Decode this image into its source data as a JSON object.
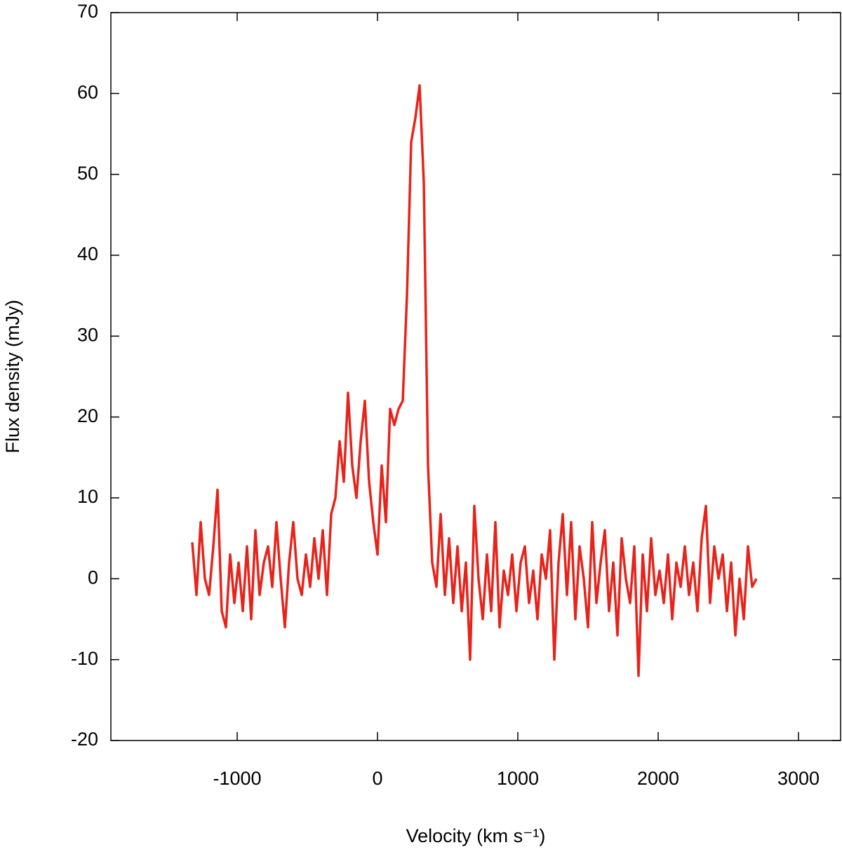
{
  "chart_data": {
    "type": "line",
    "xlabel": "Velocity (km s⁻¹)",
    "ylabel": "Flux density (mJy)",
    "xlim": [
      -1900,
      3300
    ],
    "xticks": [
      -1000,
      0,
      1000,
      2000,
      3000
    ],
    "ylim": [
      -20,
      70
    ],
    "yticks": [
      -20,
      -10,
      0,
      10,
      20,
      30,
      40,
      50,
      60,
      70
    ],
    "grid": false,
    "series": [
      {
        "color": "#e8231a",
        "x": [
          -1320,
          -1290,
          -1260,
          -1230,
          -1200,
          -1170,
          -1140,
          -1110,
          -1080,
          -1050,
          -1020,
          -990,
          -960,
          -930,
          -900,
          -870,
          -840,
          -810,
          -780,
          -750,
          -720,
          -690,
          -660,
          -630,
          -600,
          -570,
          -540,
          -510,
          -480,
          -450,
          -420,
          -390,
          -360,
          -330,
          -300,
          -270,
          -240,
          -210,
          -180,
          -150,
          -120,
          -90,
          -60,
          -30,
          0,
          30,
          60,
          90,
          120,
          150,
          180,
          210,
          240,
          270,
          300,
          330,
          360,
          390,
          420,
          450,
          480,
          510,
          540,
          570,
          600,
          630,
          660,
          690,
          720,
          750,
          780,
          810,
          840,
          870,
          900,
          930,
          960,
          990,
          1020,
          1050,
          1080,
          1110,
          1140,
          1170,
          1200,
          1230,
          1260,
          1290,
          1320,
          1350,
          1380,
          1410,
          1440,
          1470,
          1500,
          1530,
          1560,
          1590,
          1620,
          1650,
          1680,
          1710,
          1740,
          1770,
          1800,
          1830,
          1860,
          1890,
          1920,
          1950,
          1980,
          2010,
          2040,
          2070,
          2100,
          2130,
          2160,
          2190,
          2220,
          2250,
          2280,
          2310,
          2340,
          2370,
          2400,
          2430,
          2460,
          2490,
          2520,
          2550,
          2580,
          2610,
          2640,
          2670,
          2700
        ],
        "values": [
          4.5,
          -2,
          7,
          0,
          -2,
          4,
          11,
          -4,
          -6,
          3,
          -3,
          2,
          -4,
          4,
          -5,
          6,
          -2,
          2,
          4,
          -1,
          7,
          0,
          -6,
          2,
          7,
          0,
          -2,
          3,
          -1,
          5,
          0,
          6,
          -2,
          8,
          10,
          17,
          12,
          23,
          14,
          10,
          17,
          22,
          12,
          7,
          3,
          14,
          7,
          21,
          19,
          21,
          22,
          35,
          54,
          57,
          61,
          49,
          14,
          2,
          -1,
          8,
          -2,
          5,
          -3,
          4,
          -4,
          2,
          -10,
          9,
          0,
          -5,
          3,
          -4,
          7,
          -6,
          1,
          -2,
          3,
          -4,
          2,
          4,
          -3,
          1,
          -5,
          3,
          0,
          6,
          -10,
          2,
          8,
          -2,
          7,
          -5,
          4,
          0,
          -6,
          7,
          -3,
          2,
          6,
          -4,
          2,
          -7,
          5,
          0,
          -3,
          4,
          -12,
          3,
          -4,
          5,
          -2,
          1,
          -3,
          3,
          -5,
          2,
          -1,
          4,
          -2,
          2,
          -4,
          5,
          9,
          -3,
          4,
          0,
          3,
          -4,
          2,
          -7,
          0,
          -5,
          4,
          -1,
          0
        ]
      }
    ]
  }
}
